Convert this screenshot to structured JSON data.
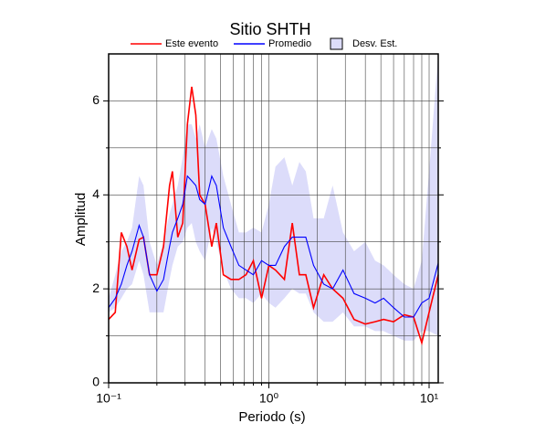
{
  "chart_data": {
    "type": "line",
    "title": "Sitio SHTH",
    "x_label": "Periodo (s)",
    "y_label": "Amplitud",
    "x_scale": "log",
    "grid": true,
    "xlim": [
      0.1,
      11.4
    ],
    "ylim": [
      0,
      7
    ],
    "xticks": [
      {
        "value": 0.1,
        "label": "10⁻¹"
      },
      {
        "value": 1,
        "label": "10⁰"
      },
      {
        "value": 10,
        "label": "10¹"
      }
    ],
    "xminor": [
      0.2,
      0.3,
      0.4,
      0.5,
      0.6,
      0.7,
      0.8,
      0.9,
      2,
      3,
      4,
      5,
      6,
      7,
      8,
      9
    ],
    "yticks": [
      0,
      2,
      4,
      6
    ],
    "yminor": [
      1,
      3,
      5
    ],
    "x": [
      0.1,
      0.11,
      0.12,
      0.13,
      0.14,
      0.155,
      0.165,
      0.18,
      0.2,
      0.22,
      0.24,
      0.25,
      0.27,
      0.29,
      0.31,
      0.33,
      0.35,
      0.37,
      0.4,
      0.44,
      0.47,
      0.52,
      0.58,
      0.65,
      0.72,
      0.8,
      0.9,
      1.0,
      1.1,
      1.25,
      1.4,
      1.55,
      1.7,
      1.9,
      2.2,
      2.5,
      2.9,
      3.4,
      4.0,
      4.6,
      5.2,
      6.0,
      7.0,
      8.0,
      9.0,
      10,
      11.4
    ],
    "series": [
      {
        "name": "Este evento",
        "color": "#ff0000",
        "values": [
          1.35,
          1.5,
          3.2,
          2.9,
          2.4,
          3.05,
          3.1,
          2.3,
          2.3,
          2.9,
          4.2,
          4.5,
          3.1,
          3.4,
          5.5,
          6.3,
          5.7,
          4.0,
          3.8,
          2.9,
          3.4,
          2.3,
          2.2,
          2.2,
          2.3,
          2.6,
          1.8,
          2.5,
          2.4,
          2.2,
          3.4,
          2.3,
          2.3,
          1.6,
          2.3,
          2.0,
          1.8,
          1.35,
          1.25,
          1.3,
          1.35,
          1.3,
          1.45,
          1.4,
          0.85,
          1.5,
          2.3
        ]
      },
      {
        "name": "Promedio",
        "color": "#0000ff",
        "values": [
          1.6,
          1.8,
          2.1,
          2.5,
          2.8,
          3.35,
          3.1,
          2.3,
          1.95,
          2.2,
          2.9,
          3.2,
          3.5,
          3.8,
          4.4,
          4.3,
          4.2,
          3.9,
          3.8,
          4.4,
          4.2,
          3.3,
          2.9,
          2.5,
          2.4,
          2.3,
          2.6,
          2.5,
          2.5,
          2.9,
          3.1,
          3.1,
          3.1,
          2.5,
          2.1,
          2.0,
          2.4,
          1.9,
          1.8,
          1.7,
          1.8,
          1.6,
          1.4,
          1.4,
          1.7,
          1.8,
          2.55
        ]
      },
      {
        "name": "Desv. Est.",
        "color": "#dcdcfa",
        "high": [
          1.8,
          2.3,
          2.8,
          3.0,
          3.3,
          4.4,
          4.2,
          3.0,
          2.5,
          3.0,
          3.6,
          3.8,
          4.2,
          4.8,
          5.5,
          5.5,
          5.2,
          5.5,
          5.0,
          5.4,
          5.2,
          4.4,
          3.8,
          3.2,
          3.2,
          3.3,
          3.2,
          3.8,
          4.6,
          4.8,
          4.2,
          4.7,
          4.5,
          3.5,
          3.5,
          4.2,
          3.2,
          2.8,
          3.0,
          2.6,
          2.5,
          2.3,
          2.1,
          2.0,
          2.6,
          4.5,
          7.0
        ],
        "low": [
          1.5,
          1.6,
          1.8,
          2.0,
          2.1,
          2.6,
          2.3,
          1.5,
          1.5,
          1.5,
          2.2,
          2.5,
          2.9,
          3.0,
          3.3,
          3.4,
          3.0,
          2.8,
          2.6,
          3.3,
          3.0,
          2.4,
          2.0,
          1.8,
          1.8,
          1.7,
          1.9,
          1.7,
          1.6,
          1.8,
          2.0,
          1.9,
          1.9,
          1.5,
          1.3,
          1.3,
          1.5,
          1.2,
          1.2,
          1.1,
          1.1,
          1.0,
          0.9,
          0.9,
          1.1,
          1.1,
          1.0
        ]
      }
    ]
  }
}
